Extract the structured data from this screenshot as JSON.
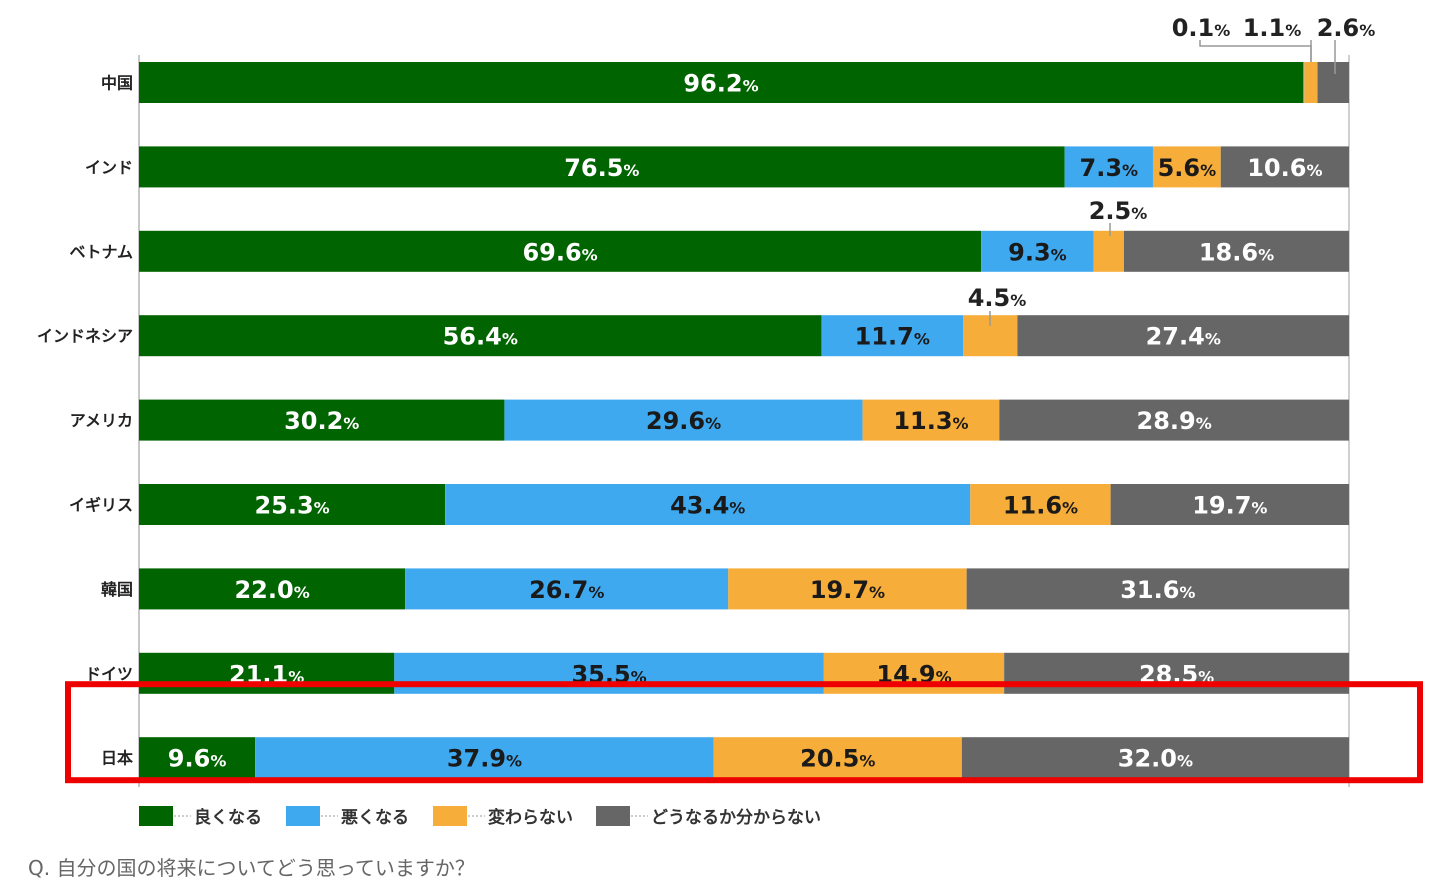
{
  "chart_data": {
    "type": "bar",
    "orientation": "horizontal",
    "stacked": true,
    "normalized_percent": true,
    "grid": false,
    "legend_placement": "bottom-left",
    "categories": [
      "中国",
      "インド",
      "ベトナム",
      "インドネシア",
      "アメリカ",
      "イギリス",
      "韓国",
      "ドイツ",
      "日本"
    ],
    "series": [
      {
        "name": "良くなる",
        "color": "#006400",
        "values": [
          96.2,
          76.5,
          69.6,
          56.4,
          30.2,
          25.3,
          22.0,
          21.1,
          9.6
        ]
      },
      {
        "name": "悪くなる",
        "color": "#3fa9f0",
        "values": [
          0.1,
          7.3,
          9.3,
          11.7,
          29.6,
          43.4,
          26.7,
          35.5,
          37.9
        ]
      },
      {
        "name": "変わらない",
        "color": "#f7ad3a",
        "values": [
          1.1,
          5.6,
          2.5,
          4.5,
          11.3,
          11.6,
          19.7,
          14.9,
          20.5
        ]
      },
      {
        "name": "どうなるか分からない",
        "color": "#666666",
        "values": [
          2.6,
          10.6,
          18.6,
          27.4,
          28.9,
          19.7,
          31.6,
          28.5,
          32.0
        ]
      }
    ],
    "value_labels": [
      [
        "96.2",
        "0.1",
        "1.1",
        "2.6"
      ],
      [
        "76.5",
        "7.3",
        "5.6",
        "10.6"
      ],
      [
        "69.6",
        "9.3",
        "2.5",
        "18.6"
      ],
      [
        "56.4",
        "11.7",
        "4.5",
        "27.4"
      ],
      [
        "30.2",
        "29.6",
        "11.3",
        "28.9"
      ],
      [
        "25.3",
        "43.4",
        "11.6",
        "19.7"
      ],
      [
        "22.0",
        "26.7",
        "19.7",
        "31.6"
      ],
      [
        "21.1",
        "35.5",
        "14.9",
        "28.5"
      ],
      [
        "9.6",
        "37.9",
        "20.5",
        "32.0"
      ]
    ],
    "percent_sign": "%",
    "highlighted_category": "日本",
    "highlight_color": "#ee0000"
  },
  "caption": "Q. 自分の国の将来についてどう思っていますか？"
}
